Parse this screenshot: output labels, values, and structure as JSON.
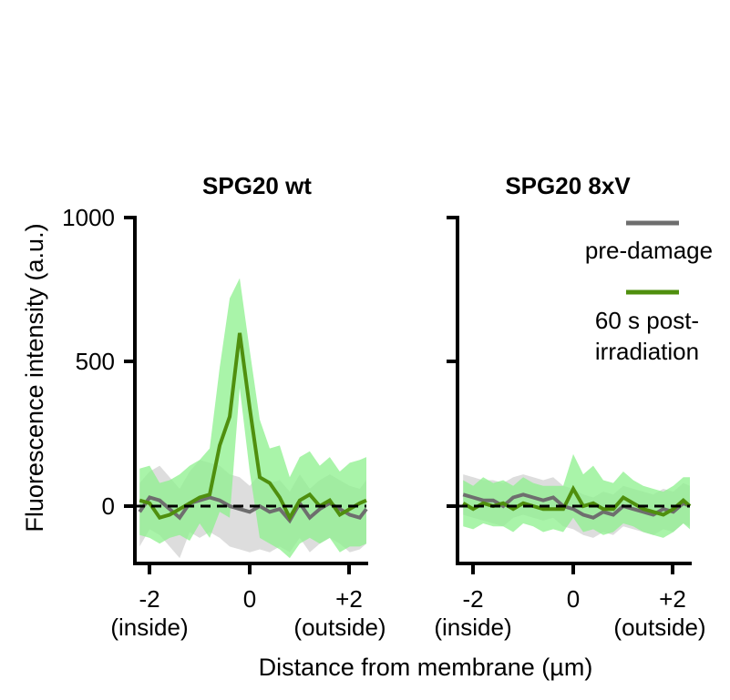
{
  "chart_data": [
    {
      "type": "line",
      "title": "SPG20 wt",
      "xlim": [
        -2.35,
        2.35
      ],
      "ylim": [
        -200,
        1000
      ],
      "x": [
        -2.2,
        -2.0,
        -1.8,
        -1.6,
        -1.4,
        -1.2,
        -1.0,
        -0.8,
        -0.6,
        -0.4,
        -0.2,
        0.0,
        0.2,
        0.4,
        0.6,
        0.8,
        1.0,
        1.2,
        1.4,
        1.6,
        1.8,
        2.0,
        2.2,
        2.4
      ],
      "series": [
        {
          "name": "pre-damage",
          "color": "#6e6e6e",
          "band_color": "#d9d9d9",
          "values": [
            -20,
            30,
            20,
            -10,
            -40,
            10,
            20,
            30,
            20,
            0,
            -10,
            -20,
            0,
            -20,
            -10,
            -50,
            10,
            -40,
            -10,
            10,
            -10,
            -30,
            -40,
            -10
          ],
          "upper": [
            80,
            120,
            140,
            100,
            60,
            120,
            160,
            150,
            140,
            110,
            100,
            70,
            110,
            80,
            90,
            50,
            110,
            60,
            90,
            110,
            90,
            70,
            60,
            90
          ],
          "lower": [
            -140,
            -80,
            -100,
            -140,
            -180,
            -90,
            -110,
            -90,
            -110,
            -140,
            -150,
            -160,
            -150,
            -160,
            -140,
            -160,
            -110,
            -160,
            -130,
            -110,
            -130,
            -160,
            -150,
            -130
          ]
        },
        {
          "name": "60 s post-irradiation",
          "color": "#4f8f0e",
          "band_color": "#8cf08c",
          "values": [
            20,
            10,
            -40,
            -30,
            -10,
            10,
            30,
            40,
            210,
            310,
            600,
            340,
            100,
            80,
            30,
            -40,
            20,
            40,
            0,
            20,
            -30,
            -10,
            10,
            20
          ],
          "upper": [
            130,
            140,
            80,
            90,
            110,
            140,
            160,
            200,
            480,
            720,
            790,
            540,
            300,
            200,
            210,
            100,
            170,
            190,
            140,
            170,
            120,
            150,
            160,
            170
          ],
          "lower": [
            -100,
            -110,
            -130,
            -110,
            -100,
            -120,
            -60,
            -110,
            -20,
            -40,
            410,
            120,
            -110,
            -130,
            -150,
            -180,
            -130,
            -110,
            -130,
            -110,
            -160,
            -140,
            -140,
            -130
          ]
        }
      ]
    },
    {
      "type": "line",
      "title": "SPG20 8xV",
      "xlim": [
        -2.35,
        2.35
      ],
      "ylim": [
        -200,
        1000
      ],
      "x": [
        -2.2,
        -2.0,
        -1.8,
        -1.6,
        -1.4,
        -1.2,
        -1.0,
        -0.8,
        -0.6,
        -0.4,
        -0.2,
        0.0,
        0.2,
        0.4,
        0.6,
        0.8,
        1.0,
        1.2,
        1.4,
        1.6,
        1.8,
        2.0,
        2.2,
        2.4
      ],
      "series": [
        {
          "name": "pre-damage",
          "color": "#6e6e6e",
          "band_color": "#d9d9d9",
          "values": [
            40,
            30,
            20,
            20,
            0,
            30,
            40,
            30,
            20,
            30,
            0,
            -10,
            -30,
            -40,
            -20,
            -30,
            0,
            -10,
            -20,
            -30,
            -10,
            -20,
            10,
            0
          ],
          "upper": [
            110,
            100,
            90,
            90,
            80,
            100,
            110,
            100,
            90,
            100,
            70,
            60,
            40,
            30,
            50,
            40,
            70,
            60,
            50,
            40,
            60,
            50,
            80,
            70
          ],
          "lower": [
            -30,
            -40,
            -50,
            -60,
            -70,
            -40,
            -30,
            -40,
            -50,
            -40,
            -70,
            -80,
            -100,
            -110,
            -90,
            -100,
            -70,
            -80,
            -90,
            -100,
            -80,
            -90,
            -60,
            -70
          ]
        },
        {
          "name": "60 s post-irradiation",
          "color": "#4f8f0e",
          "band_color": "#8cf08c",
          "values": [
            10,
            -10,
            10,
            0,
            10,
            -10,
            10,
            0,
            -10,
            -10,
            -10,
            60,
            0,
            10,
            -10,
            -10,
            30,
            10,
            -10,
            -20,
            -30,
            -10,
            20,
            0
          ],
          "upper": [
            90,
            70,
            100,
            80,
            90,
            70,
            100,
            80,
            70,
            70,
            70,
            180,
            110,
            140,
            90,
            80,
            120,
            90,
            70,
            60,
            50,
            70,
            100,
            100
          ],
          "lower": [
            -70,
            -80,
            -60,
            -70,
            -70,
            -90,
            -60,
            -70,
            -90,
            -80,
            -90,
            -40,
            -90,
            -80,
            -100,
            -90,
            -60,
            -70,
            -90,
            -100,
            -110,
            -90,
            -60,
            -80
          ]
        }
      ]
    }
  ],
  "axes": {
    "y_title": "Fluorescence intensity (a.u.)",
    "x_title": "Distance from membrane (µm)",
    "y_ticks": [
      "1000",
      "500",
      "0"
    ],
    "y_tick_values": [
      1000,
      500,
      0
    ],
    "x_ticks": [
      "-2",
      "0",
      "+2"
    ],
    "x_tick_values": [
      -2,
      0,
      2
    ],
    "x_sub_left": "(inside)",
    "x_sub_right": "(outside)"
  },
  "legend": {
    "items": [
      {
        "label": "pre-damage",
        "color": "#6e6e6e"
      },
      {
        "label_line1": "60 s post-",
        "label_line2": "irradiation",
        "color": "#4f8f0e"
      }
    ]
  }
}
